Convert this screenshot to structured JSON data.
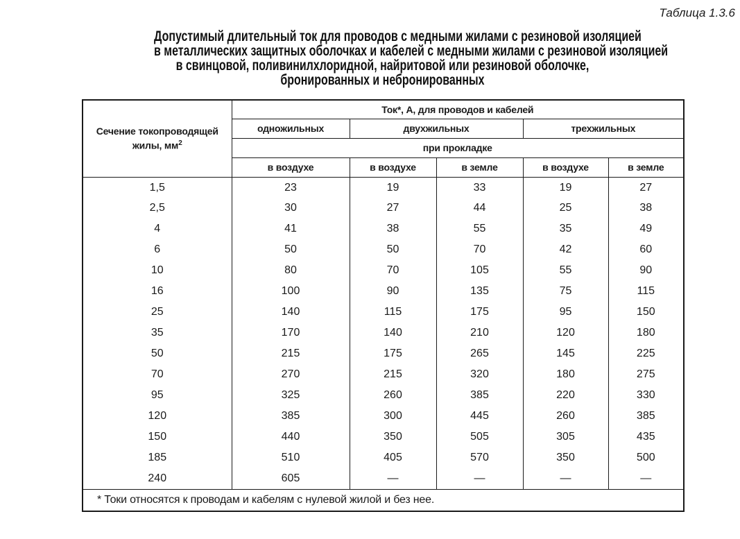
{
  "page": {
    "table_label": "Таблица 1.3.6",
    "title_lines": [
      "Допустимый длительный ток для проводов с медными жилами с резиновой изоляцией",
      "в металлических защитных оболочках и кабелей с медными жилами с резиновой изоляцией",
      "в свинцовой, поливинилхлоридной, найритовой или резиновой оболочке,",
      "бронированных и небронированных"
    ]
  },
  "table": {
    "header": {
      "section_title": "Сечение токопроводящей жилы, мм",
      "section_sup": "2",
      "group_title": "Ток*, А, для проводов и кабелей",
      "core_types": [
        "одножильных",
        "двухжильных",
        "трехжильных"
      ],
      "laying_title": "при прокладке",
      "environments": [
        "в воздухе",
        "в воздухе",
        "в земле",
        "в воздухе",
        "в земле"
      ]
    },
    "rows": [
      {
        "section": "1,5",
        "values": [
          "23",
          "19",
          "33",
          "19",
          "27"
        ]
      },
      {
        "section": "2,5",
        "values": [
          "30",
          "27",
          "44",
          "25",
          "38"
        ]
      },
      {
        "section": "4",
        "values": [
          "41",
          "38",
          "55",
          "35",
          "49"
        ]
      },
      {
        "section": "6",
        "values": [
          "50",
          "50",
          "70",
          "42",
          "60"
        ]
      },
      {
        "section": "10",
        "values": [
          "80",
          "70",
          "105",
          "55",
          "90"
        ]
      },
      {
        "section": "16",
        "values": [
          "100",
          "90",
          "135",
          "75",
          "115"
        ]
      },
      {
        "section": "25",
        "values": [
          "140",
          "115",
          "175",
          "95",
          "150"
        ]
      },
      {
        "section": "35",
        "values": [
          "170",
          "140",
          "210",
          "120",
          "180"
        ]
      },
      {
        "section": "50",
        "values": [
          "215",
          "175",
          "265",
          "145",
          "225"
        ]
      },
      {
        "section": "70",
        "values": [
          "270",
          "215",
          "320",
          "180",
          "275"
        ]
      },
      {
        "section": "95",
        "values": [
          "325",
          "260",
          "385",
          "220",
          "330"
        ]
      },
      {
        "section": "120",
        "values": [
          "385",
          "300",
          "445",
          "260",
          "385"
        ]
      },
      {
        "section": "150",
        "values": [
          "440",
          "350",
          "505",
          "305",
          "435"
        ]
      },
      {
        "section": "185",
        "values": [
          "510",
          "405",
          "570",
          "350",
          "500"
        ]
      },
      {
        "section": "240",
        "values": [
          "605",
          "—",
          "—",
          "—",
          "—"
        ]
      }
    ],
    "footnote": "* Токи относятся к проводам и кабелям с нулевой жилой и без нее."
  },
  "colors": {
    "background": "#ffffff",
    "text": "#1a1a1a",
    "border": "#1a1a1a"
  }
}
